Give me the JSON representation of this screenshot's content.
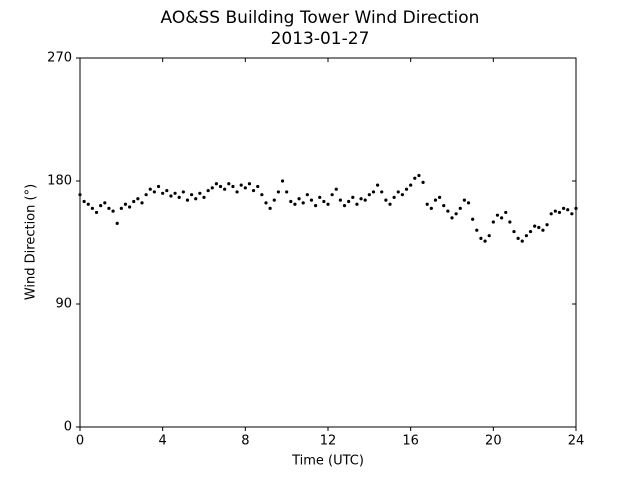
{
  "chart_data": {
    "type": "scatter",
    "title": "AO&SS Building Tower Wind Direction",
    "subtitle": "2013-01-27",
    "x_label": "Time (UTC)",
    "y_label": "Wind Direction (°)",
    "color": "#000000",
    "xlim": [
      0,
      24
    ],
    "xticks": [
      0,
      4,
      8,
      12,
      16,
      20,
      24
    ],
    "ylim": [
      0,
      270
    ],
    "yticks": [
      0,
      90,
      180,
      270
    ],
    "x": [
      0,
      0.2,
      0.4,
      0.6,
      0.8,
      1,
      1.2,
      1.4,
      1.6,
      1.8,
      2,
      2.2,
      2.4,
      2.6,
      2.8,
      3,
      3.2,
      3.4,
      3.6,
      3.8,
      4,
      4.2,
      4.4,
      4.6,
      4.8,
      5,
      5.2,
      5.4,
      5.6,
      5.8,
      6,
      6.2,
      6.4,
      6.6,
      6.8,
      7,
      7.2,
      7.4,
      7.6,
      7.8,
      8,
      8.2,
      8.4,
      8.6,
      8.8,
      9,
      9.2,
      9.4,
      9.6,
      9.8,
      10,
      10.2,
      10.4,
      10.6,
      10.8,
      11,
      11.2,
      11.4,
      11.6,
      11.8,
      12,
      12.2,
      12.4,
      12.6,
      12.8,
      13,
      13.2,
      13.4,
      13.6,
      13.8,
      14,
      14.2,
      14.4,
      14.6,
      14.8,
      15,
      15.2,
      15.4,
      15.6,
      15.8,
      16,
      16.2,
      16.4,
      16.6,
      16.8,
      17,
      17.2,
      17.4,
      17.6,
      17.8,
      18,
      18.2,
      18.4,
      18.6,
      18.8,
      19,
      19.2,
      19.4,
      19.6,
      19.8,
      20,
      20.2,
      20.4,
      20.6,
      20.8,
      21,
      21.2,
      21.4,
      21.6,
      21.8,
      22,
      22.2,
      22.4,
      22.6,
      22.8,
      23,
      23.2,
      23.4,
      23.6,
      23.8,
      24
    ],
    "values": [
      170,
      165,
      163,
      160,
      157,
      162,
      164,
      160,
      158,
      149,
      160,
      163,
      161,
      165,
      167,
      164,
      170,
      174,
      172,
      176,
      171,
      173,
      169,
      171,
      168,
      172,
      166,
      170,
      167,
      171,
      168,
      173,
      175,
      178,
      176,
      174,
      178,
      176,
      172,
      177,
      175,
      178,
      173,
      176,
      170,
      164,
      160,
      166,
      172,
      180,
      172,
      165,
      163,
      167,
      164,
      170,
      166,
      162,
      168,
      165,
      163,
      170,
      174,
      166,
      162,
      165,
      168,
      163,
      167,
      166,
      170,
      172,
      177,
      172,
      166,
      163,
      168,
      172,
      170,
      174,
      177,
      182,
      184,
      179,
      163,
      160,
      166,
      168,
      162,
      158,
      153,
      156,
      160,
      166,
      164,
      152,
      144,
      138,
      136,
      140,
      150,
      155,
      153,
      157,
      150,
      143,
      138,
      136,
      140,
      143,
      147,
      146,
      144,
      148,
      156,
      158,
      157,
      160,
      159,
      156,
      160
    ]
  }
}
